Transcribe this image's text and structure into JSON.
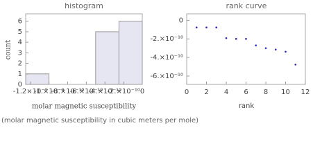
{
  "chart_data": [
    {
      "type": "histogram",
      "title": "histogram",
      "xlabel": "molar magnetic susceptibility",
      "ylabel": "count",
      "bins": [
        -1.25e-09,
        -1e-09,
        -7.5e-10,
        -5e-10,
        -2.5e-10,
        0
      ],
      "counts": [
        1,
        0,
        0,
        5,
        6
      ],
      "color": "#e6e6f2",
      "xlim": [
        -1.25e-09,
        0
      ],
      "xticks": [
        {
          "value": -1.2e-09,
          "label": "-1.2×10⁻⁹"
        },
        {
          "value": -1e-09,
          "label": "-1.×10⁻⁹"
        },
        {
          "value": -8e-10,
          "label": "-8.×10⁻¹⁰"
        },
        {
          "value": -6e-10,
          "label": "-6.×10⁻¹⁰"
        },
        {
          "value": -4e-10,
          "label": "-4.×10⁻¹⁰"
        },
        {
          "value": -2e-10,
          "label": "-2.×10⁻¹⁰"
        },
        0
      ],
      "ylim": [
        0,
        6.7
      ],
      "yticks": [
        0,
        1,
        2,
        3,
        4,
        5,
        6
      ]
    },
    {
      "type": "scatter",
      "title": "rank curve",
      "xlabel": "rank",
      "x": [
        1,
        2,
        3,
        4,
        5,
        6,
        7,
        8,
        9,
        10,
        11
      ],
      "values": [
        -7.7e-11,
        -7.7e-11,
        -7.7e-11,
        -1.92e-10,
        -2e-10,
        -2e-10,
        -2.7e-10,
        -3e-10,
        -3.15e-10,
        -3.38e-10,
        -4.77e-10
      ],
      "color": "#2a2ab8",
      "xlim": [
        0,
        12
      ],
      "xticks": [
        0,
        2,
        4,
        6,
        8,
        10,
        12
      ],
      "ylim": [
        -6.9e-10,
        7e-11
      ],
      "yticks": [
        0,
        {
          "value": -2e-10,
          "label": "-2.×10⁻¹⁰"
        },
        {
          "value": -4e-10,
          "label": "-4.×10⁻¹⁰"
        },
        {
          "value": -6e-10,
          "label": "-6.×10⁻¹⁰"
        }
      ]
    }
  ],
  "footnote": "(molar magnetic susceptibility in cubic meters per mole)"
}
